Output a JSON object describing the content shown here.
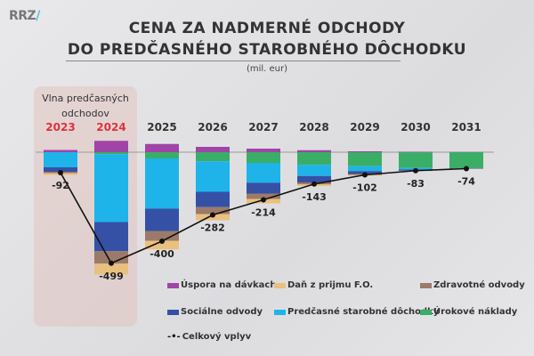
{
  "logo": "RRZ",
  "title_line1": "CENA ZA NADMERNÉ ODCHODY",
  "title_line2": "DO PREDČASNÉHO STAROBNÉHO DÔCHODKU",
  "unit": "(mil. eur)",
  "highlight_label": "Vlna predčasných odchodov",
  "chart_data": {
    "type": "bar",
    "stacked": true,
    "categories": [
      "2023",
      "2024",
      "2025",
      "2026",
      "2027",
      "2028",
      "2029",
      "2030",
      "2031"
    ],
    "highlighted_categories": [
      "2023",
      "2024"
    ],
    "colors": {
      "highlight_year": "#e0323c",
      "year": "#333333"
    },
    "series": [
      {
        "name": "Úspora na dávkach",
        "color": "#a044a8",
        "values": [
          10,
          51,
          37,
          24,
          16,
          9,
          4,
          2,
          1
        ]
      },
      {
        "name": "Úrokové náklady",
        "color": "#3aae66",
        "values": [
          0,
          -9,
          -28,
          -41,
          -48,
          -57,
          -63,
          -71,
          -72
        ]
      },
      {
        "name": "Predčasné starobné dôchodky",
        "color": "#1eb4ea",
        "values": [
          -68,
          -305,
          -226,
          -137,
          -89,
          -50,
          -22,
          -7,
          -1
        ]
      },
      {
        "name": "Sociálne odvody",
        "color": "#3551a6",
        "values": [
          -20,
          -131,
          -100,
          -69,
          -49,
          -29,
          -13,
          -4,
          -1
        ]
      },
      {
        "name": "Zdravotné odvody",
        "color": "#9c7a6a",
        "values": [
          -6,
          -56,
          -44,
          -31,
          -24,
          -8,
          -4,
          -2,
          -1
        ]
      },
      {
        "name": "Daň z prijmu F.O.",
        "color": "#eac07e",
        "values": [
          -8,
          -49,
          -39,
          -28,
          -20,
          -8,
          -4,
          -1,
          0
        ]
      }
    ],
    "line": {
      "name": "Celkový vplyv",
      "color": "#111111",
      "values": [
        -92,
        -499,
        -400,
        -282,
        -214,
        -143,
        -102,
        -83,
        -74
      ]
    },
    "grid": false,
    "legend_position": "bottom"
  },
  "legend": [
    {
      "label": "Úspora na dávkach",
      "color": "#a044a8"
    },
    {
      "label": "Daň z prijmu F.O.",
      "color": "#eac07e"
    },
    {
      "label": "Zdravotné odvody",
      "color": "#9c7a6a"
    },
    {
      "label": "Sociálne odvody",
      "color": "#3551a6"
    },
    {
      "label": "Predčasné starobné dôchodky",
      "color": "#1eb4ea"
    },
    {
      "label": "Úrokové náklady",
      "color": "#3aae66"
    },
    {
      "label": "Celkový vplyv",
      "color": "#111111"
    }
  ]
}
